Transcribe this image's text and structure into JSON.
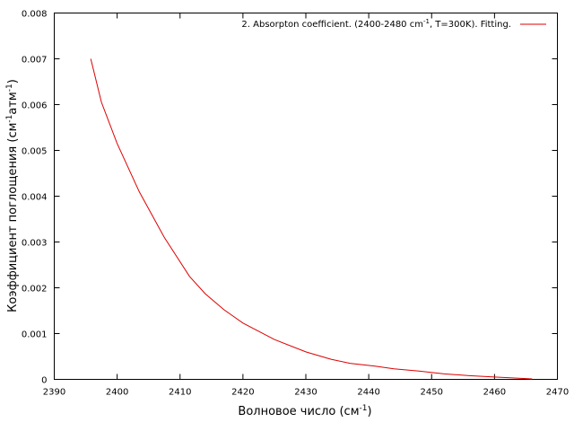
{
  "chart_data": {
    "type": "line",
    "xlabel_main": "Волновое число (см",
    "xlabel_sup": "-1",
    "xlabel_end": ")",
    "ylabel_main": "Коэффициент поглощения (см",
    "ylabel_sup1": "-1",
    "ylabel_mid": "атм",
    "ylabel_sup2": "-1",
    "ylabel_end": ")",
    "xlim": [
      2390,
      2470
    ],
    "ylim": [
      0,
      0.008
    ],
    "xticks": [
      2390,
      2400,
      2410,
      2420,
      2430,
      2440,
      2450,
      2460,
      2470
    ],
    "yticks": [
      0,
      0.001,
      0.002,
      0.003,
      0.004,
      0.005,
      0.006,
      0.007,
      0.008
    ],
    "xtick_labels": [
      "2390",
      "2400",
      "2410",
      "2420",
      "2430",
      "2440",
      "2450",
      "2460",
      "2470"
    ],
    "ytick_labels": [
      "0",
      "0.001",
      "0.002",
      "0.003",
      "0.004",
      "0.005",
      "0.006",
      "0.007",
      "0.008"
    ],
    "grid": false,
    "legend_position": "top-right",
    "legend_parts": [
      "2. Absorpton coefficient. (2400-2480 cm",
      "-1",
      ", T=300K). Fitting."
    ],
    "series": [
      {
        "name": "2. Absorpton coefficient. (2400-2480 cm-1, T=300K). Fitting.",
        "color": "#dd0000",
        "x": [
          2395.8,
          2397.5,
          2400,
          2403.5,
          2407.5,
          2411.5,
          2414,
          2417,
          2420,
          2425,
          2430,
          2434,
          2437,
          2441,
          2444,
          2448,
          2452,
          2456,
          2460,
          2466
        ],
        "y": [
          0.007,
          0.00605,
          0.00515,
          0.0041,
          0.0031,
          0.00225,
          0.00187,
          0.00152,
          0.00123,
          0.00087,
          0.0006,
          0.00044,
          0.00035,
          0.00029,
          0.00023,
          0.00018,
          0.00012,
          8e-05,
          5e-05,
          1e-05
        ]
      }
    ]
  }
}
